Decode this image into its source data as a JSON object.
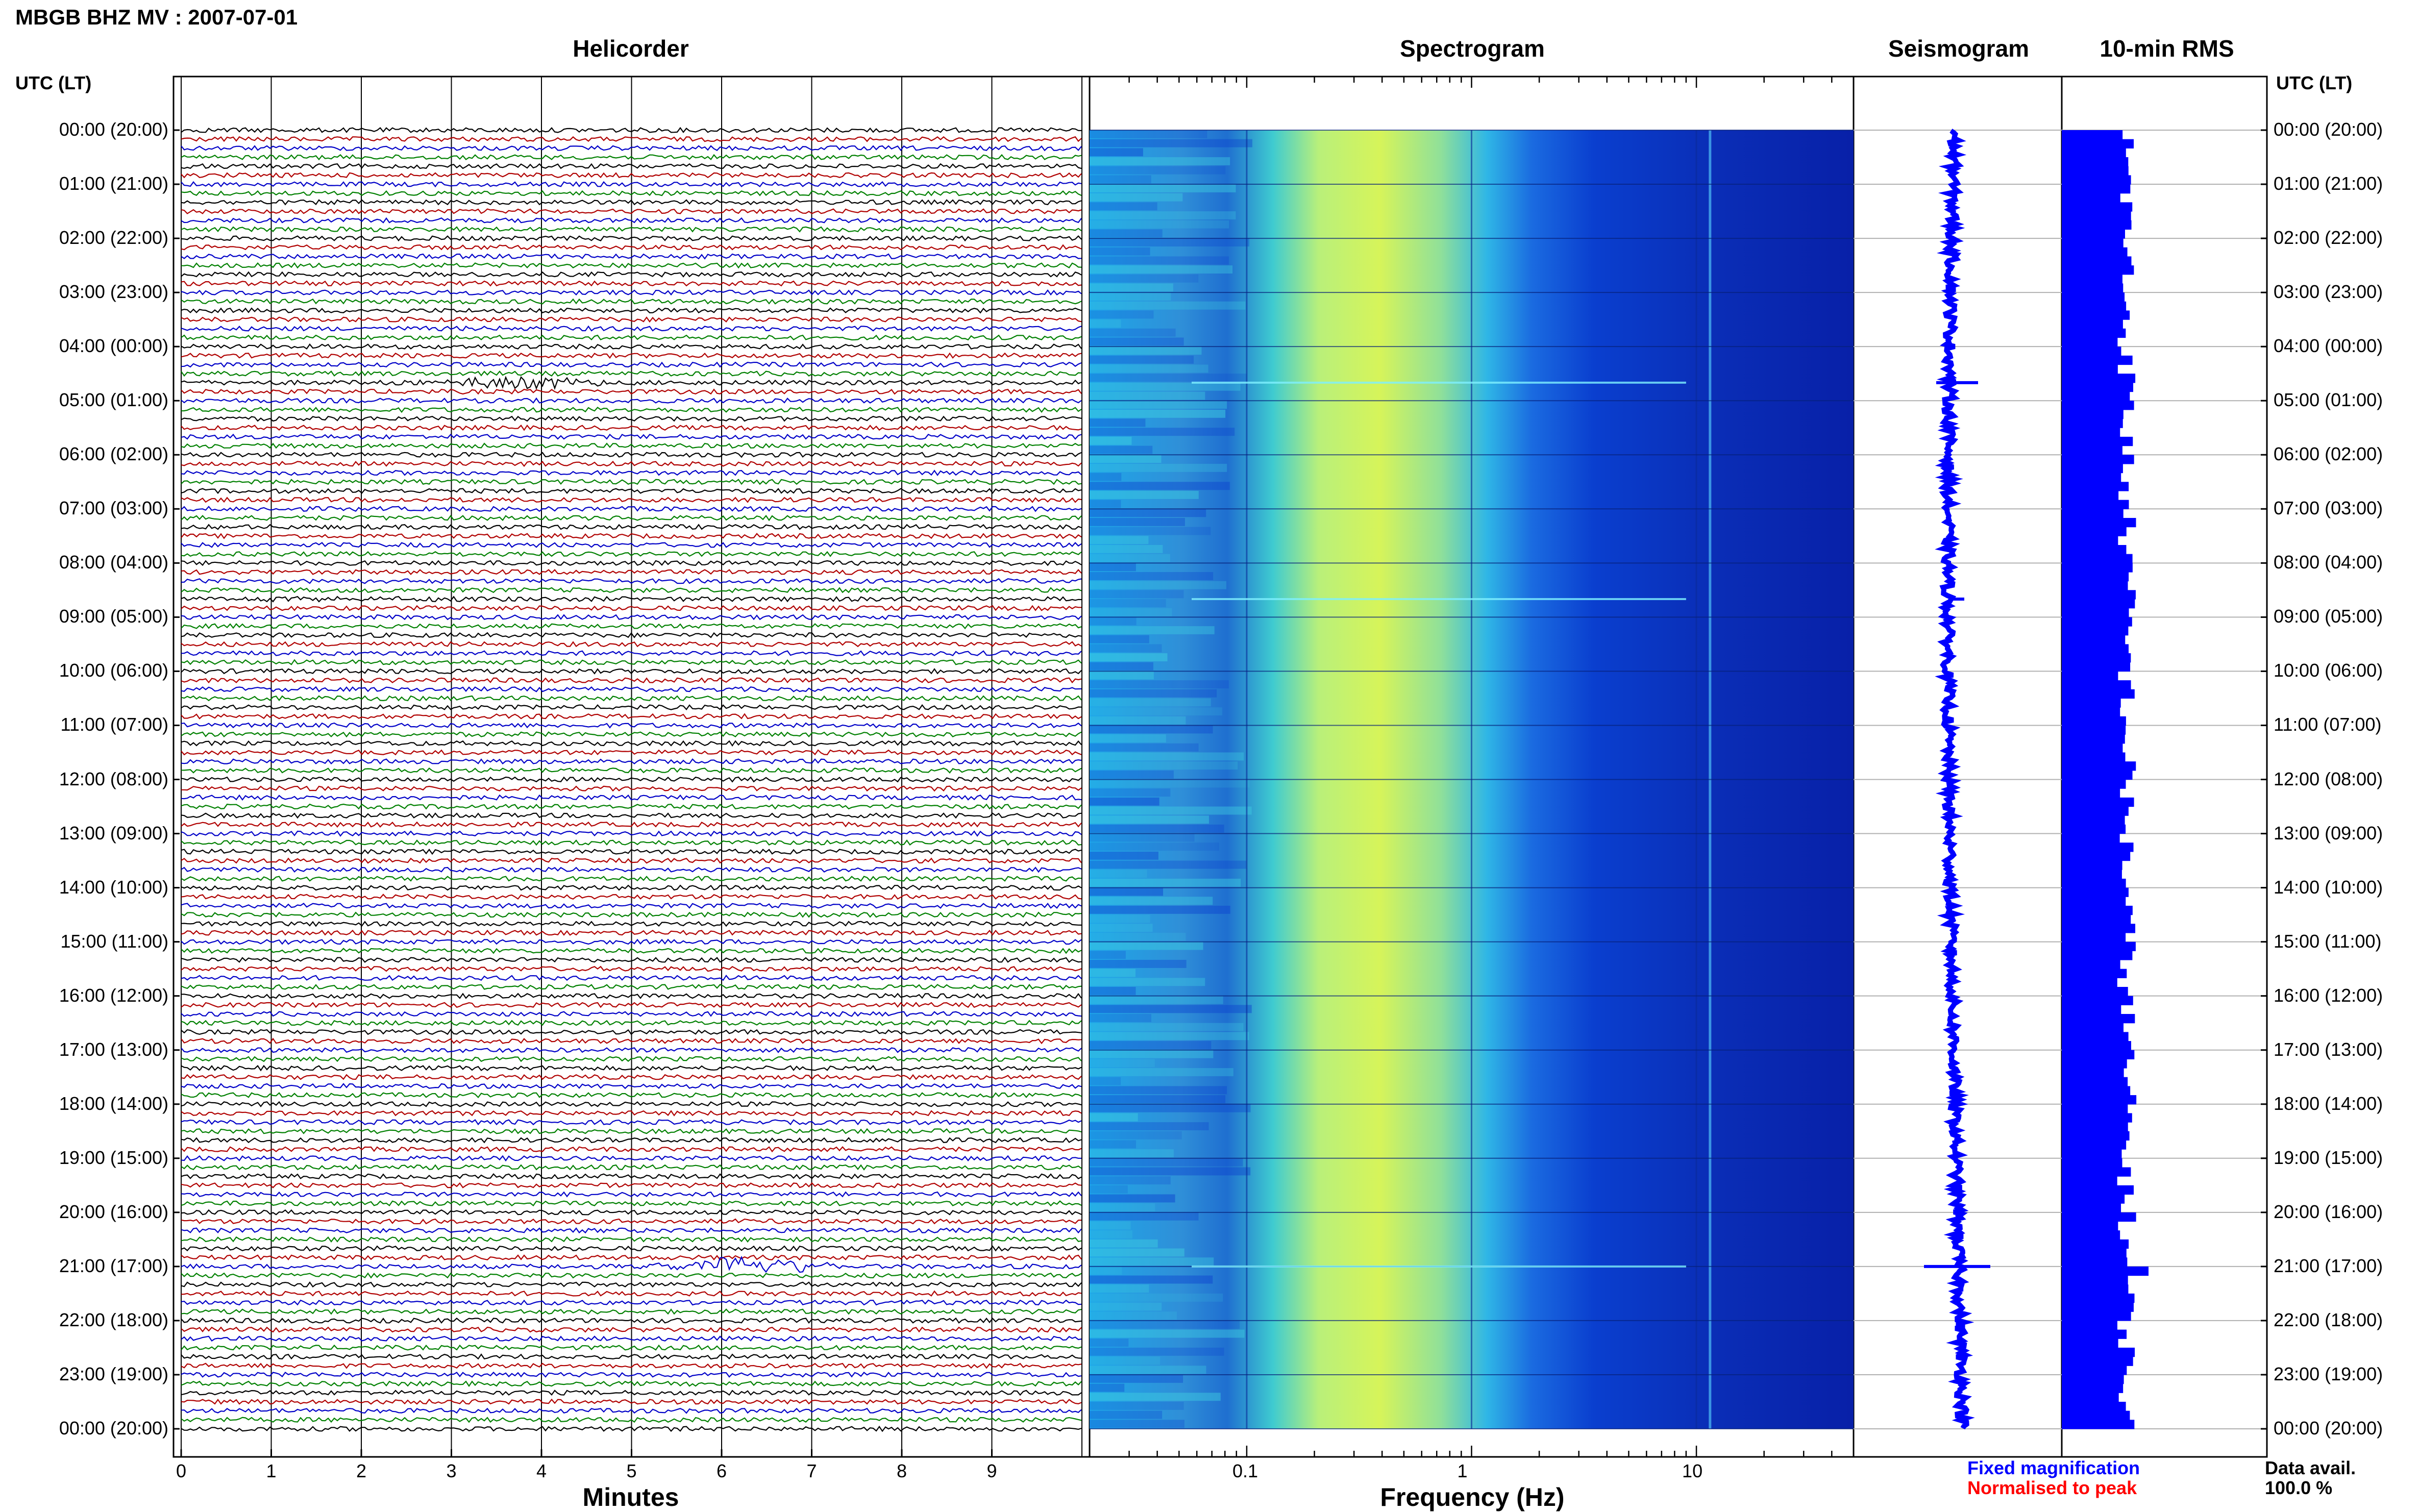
{
  "header": {
    "title": "MBGB BHZ MV : 2007-07-01"
  },
  "panels": {
    "helicorder": "Helicorder",
    "spectrogram": "Spectrogram",
    "seismogram": "Seismogram",
    "rms": "10-min RMS"
  },
  "axes": {
    "left_header": "UTC (LT)",
    "right_header": "UTC (LT)",
    "minutes_label": "Minutes",
    "frequency_label": "Frequency (Hz)",
    "minute_ticks": [
      "0",
      "1",
      "2",
      "3",
      "4",
      "5",
      "6",
      "7",
      "8",
      "9"
    ],
    "frequency_ticks": [
      "0.1",
      "1",
      "10"
    ]
  },
  "hour_labels": [
    "00:00 (20:00)",
    "01:00 (21:00)",
    "02:00 (22:00)",
    "03:00 (23:00)",
    "04:00 (00:00)",
    "05:00 (01:00)",
    "06:00 (02:00)",
    "07:00 (03:00)",
    "08:00 (04:00)",
    "09:00 (05:00)",
    "10:00 (06:00)",
    "11:00 (07:00)",
    "12:00 (08:00)",
    "13:00 (09:00)",
    "14:00 (10:00)",
    "15:00 (11:00)",
    "16:00 (12:00)",
    "17:00 (13:00)",
    "18:00 (14:00)",
    "19:00 (15:00)",
    "20:00 (16:00)",
    "21:00 (17:00)",
    "22:00 (18:00)",
    "23:00 (19:00)",
    "00:00 (20:00)"
  ],
  "legend": {
    "fixed": "Fixed magnification",
    "normalised": "Normalised to peak"
  },
  "availability": {
    "label": "Data avail.",
    "value": "100.0 %"
  },
  "colors": {
    "trace_cycle": [
      "#000000",
      "#b00000",
      "#0000c8",
      "#008000"
    ],
    "seismogram": "#0000ff",
    "rms": "#0000ff"
  },
  "chart_data": {
    "type": "heatmap",
    "hours": 24,
    "minutes_per_line": 10,
    "xlim_minutes": [
      0,
      10
    ],
    "frequency_range_hz": [
      0.02,
      50
    ],
    "frequency_scale": "log",
    "events": [
      {
        "utc": "04:40",
        "minute": 3.8,
        "amplitude": 0.6
      },
      {
        "utc": "08:40",
        "minute": 2.0,
        "amplitude": 0.15
      },
      {
        "utc": "21:00",
        "minute": 6.3,
        "amplitude": 1.0
      }
    ],
    "rms_10min": {
      "start_utc": "00:00",
      "interval_min": 10,
      "relative_values_note": "",
      "baseline": 0.75,
      "peak_at_utc": "21:00",
      "peak_value": 1.0
    }
  }
}
